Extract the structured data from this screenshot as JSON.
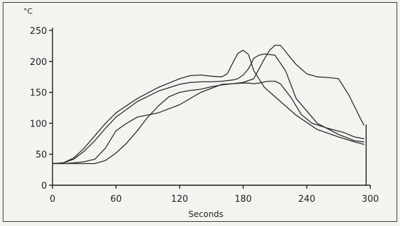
{
  "chart_data": {
    "type": "line",
    "y_unit": "°C",
    "xlabel": "Seconds",
    "ylabel": "",
    "xlim": [
      0,
      300
    ],
    "ylim": [
      0,
      250
    ],
    "x_ticks": [
      0,
      60,
      120,
      180,
      240,
      300
    ],
    "y_ticks": [
      0,
      50,
      100,
      150,
      200,
      250
    ],
    "grid": false,
    "line_color": "#2a2a2a",
    "background": "#f3f3f0",
    "series": [
      {
        "x": [
          0,
          10,
          20,
          30,
          40,
          50,
          60,
          80,
          100,
          120,
          130,
          140,
          150,
          160,
          170,
          175,
          180,
          185,
          188,
          190,
          195,
          200,
          210,
          220,
          230,
          250,
          270,
          285,
          294
        ],
        "values": [
          35,
          36,
          42,
          55,
          72,
          92,
          110,
          135,
          152,
          163,
          166,
          167,
          167,
          168,
          170,
          172,
          178,
          188,
          198,
          205,
          210,
          212,
          210,
          185,
          140,
          100,
          82,
          72,
          70
        ]
      },
      {
        "x": [
          0,
          10,
          20,
          30,
          40,
          50,
          60,
          80,
          100,
          120,
          130,
          140,
          150,
          160,
          165,
          170,
          175,
          180,
          185,
          190,
          200,
          210,
          220,
          230,
          250,
          270,
          285,
          294
        ],
        "values": [
          35,
          36,
          44,
          60,
          80,
          100,
          117,
          140,
          158,
          172,
          177,
          178,
          176,
          175,
          180,
          197,
          213,
          218,
          211,
          185,
          158,
          143,
          128,
          113,
          90,
          78,
          70,
          66
        ]
      },
      {
        "x": [
          0,
          10,
          20,
          30,
          40,
          50,
          60,
          70,
          80,
          100,
          120,
          140,
          160,
          170,
          180,
          190,
          200,
          205,
          210,
          215,
          220,
          225,
          230,
          240,
          250,
          260,
          270,
          280,
          290,
          294
        ],
        "values": [
          35,
          35,
          36,
          38,
          42,
          60,
          88,
          100,
          110,
          117,
          130,
          150,
          163,
          164,
          166,
          172,
          204,
          218,
          226,
          226,
          216,
          205,
          195,
          180,
          175,
          174,
          172,
          145,
          110,
          97
        ]
      },
      {
        "x": [
          0,
          10,
          20,
          30,
          40,
          50,
          60,
          70,
          80,
          90,
          100,
          110,
          120,
          130,
          140,
          150,
          160,
          170,
          180,
          185,
          190,
          195,
          200,
          205,
          210,
          215,
          225,
          235,
          245,
          260,
          275,
          285,
          294
        ],
        "values": [
          35,
          35,
          35,
          35,
          35,
          40,
          52,
          68,
          88,
          110,
          128,
          143,
          150,
          153,
          155,
          159,
          162,
          164,
          165,
          165,
          164,
          165,
          167,
          168,
          168,
          164,
          142,
          114,
          100,
          92,
          85,
          78,
          75
        ]
      }
    ]
  }
}
